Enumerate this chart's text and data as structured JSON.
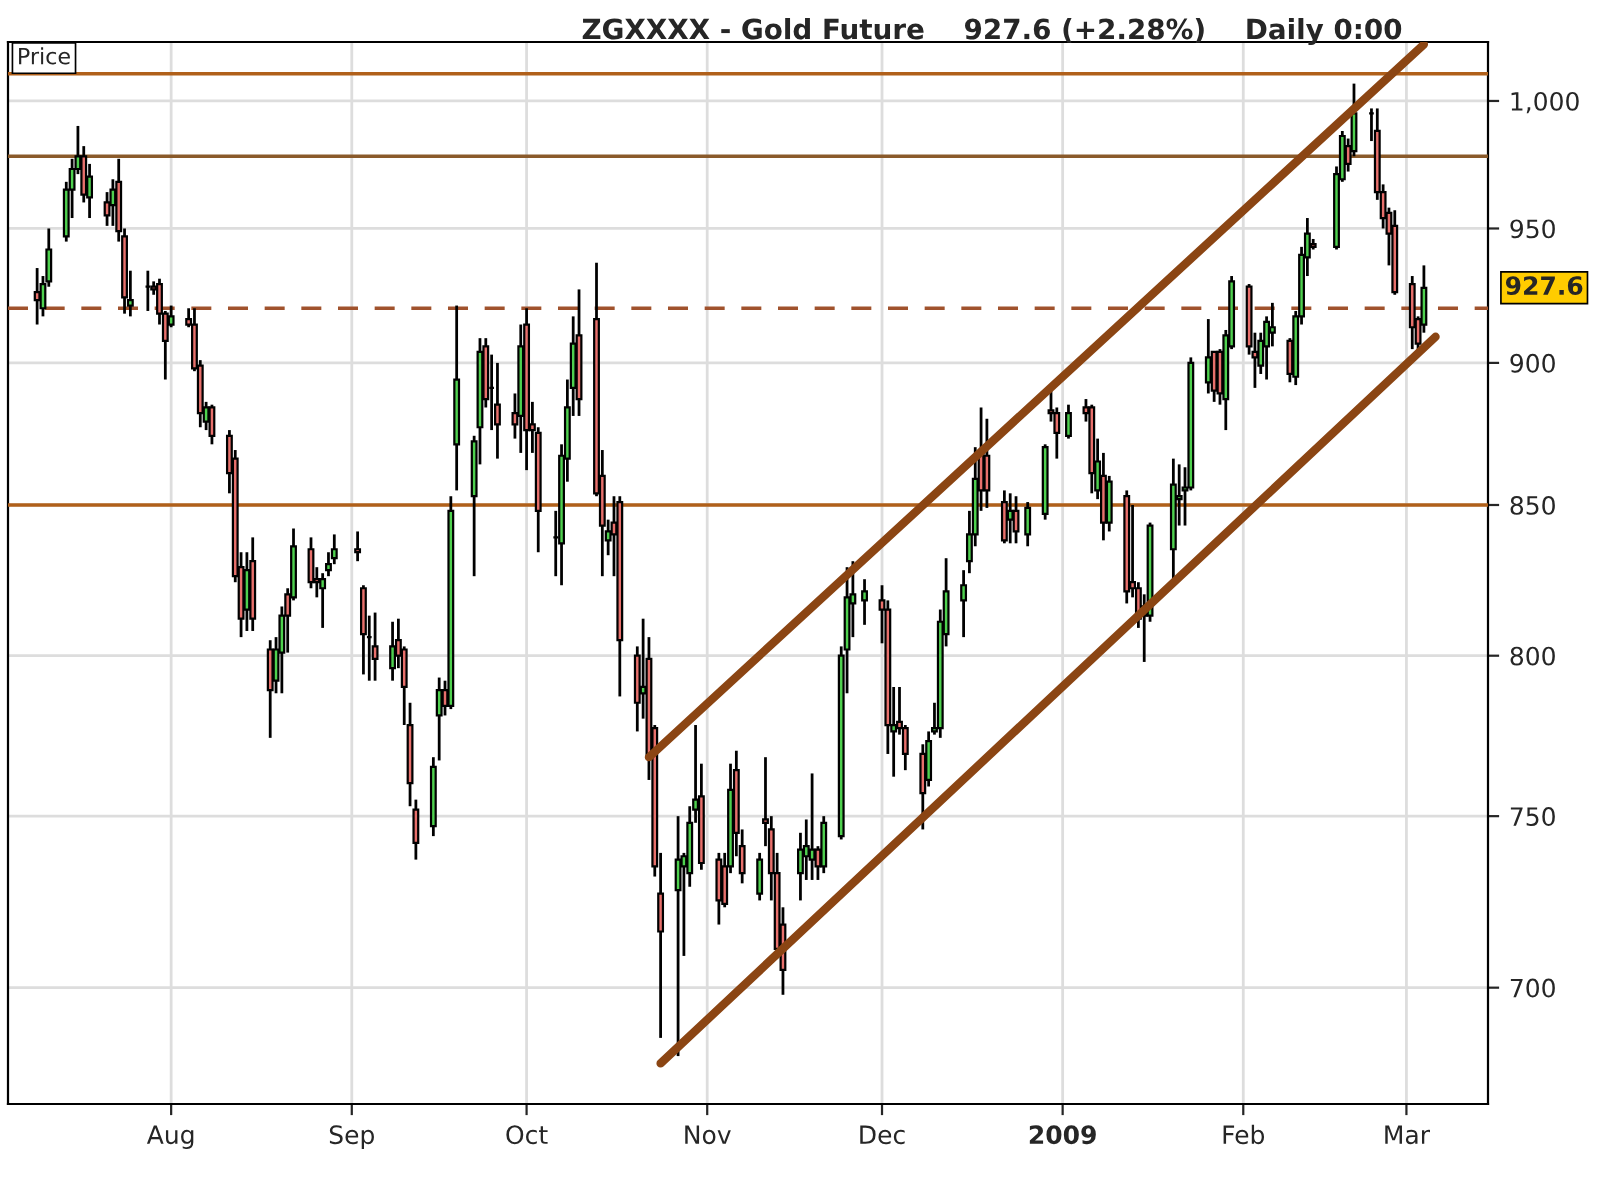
{
  "chart_data": {
    "type": "candlestick",
    "title": "ZGXXXX - Gold Future    927.6 (+2.28%)    Daily 0:00",
    "x": [
      "2008-07-09",
      "2008-07-10",
      "2008-07-11",
      "2008-07-14",
      "2008-07-15",
      "2008-07-16",
      "2008-07-17",
      "2008-07-18",
      "2008-07-21",
      "2008-07-22",
      "2008-07-23",
      "2008-07-24",
      "2008-07-25",
      "2008-07-28",
      "2008-07-29",
      "2008-07-30",
      "2008-07-31",
      "2008-08-01",
      "2008-08-04",
      "2008-08-05",
      "2008-08-06",
      "2008-08-07",
      "2008-08-08",
      "2008-08-11",
      "2008-08-12",
      "2008-08-13",
      "2008-08-14",
      "2008-08-15",
      "2008-08-18",
      "2008-08-19",
      "2008-08-20",
      "2008-08-21",
      "2008-08-22",
      "2008-08-25",
      "2008-08-26",
      "2008-08-27",
      "2008-08-28",
      "2008-08-29",
      "2008-09-02",
      "2008-09-03",
      "2008-09-04",
      "2008-09-05",
      "2008-09-08",
      "2008-09-09",
      "2008-09-10",
      "2008-09-11",
      "2008-09-12",
      "2008-09-15",
      "2008-09-16",
      "2008-09-17",
      "2008-09-18",
      "2008-09-19",
      "2008-09-22",
      "2008-09-23",
      "2008-09-24",
      "2008-09-25",
      "2008-09-26",
      "2008-09-29",
      "2008-09-30",
      "2008-10-01",
      "2008-10-02",
      "2008-10-03",
      "2008-10-06",
      "2008-10-07",
      "2008-10-08",
      "2008-10-09",
      "2008-10-10",
      "2008-10-13",
      "2008-10-14",
      "2008-10-15",
      "2008-10-16",
      "2008-10-17",
      "2008-10-20",
      "2008-10-21",
      "2008-10-22",
      "2008-10-23",
      "2008-10-24",
      "2008-10-27",
      "2008-10-28",
      "2008-10-29",
      "2008-10-30",
      "2008-10-31",
      "2008-11-03",
      "2008-11-04",
      "2008-11-05",
      "2008-11-06",
      "2008-11-07",
      "2008-11-10",
      "2008-11-11",
      "2008-11-12",
      "2008-11-13",
      "2008-11-14",
      "2008-11-17",
      "2008-11-18",
      "2008-11-19",
      "2008-11-20",
      "2008-11-21",
      "2008-11-24",
      "2008-11-25",
      "2008-11-26",
      "2008-11-28",
      "2008-12-01",
      "2008-12-02",
      "2008-12-03",
      "2008-12-04",
      "2008-12-05",
      "2008-12-08",
      "2008-12-09",
      "2008-12-10",
      "2008-12-11",
      "2008-12-12",
      "2008-12-15",
      "2008-12-16",
      "2008-12-17",
      "2008-12-18",
      "2008-12-19",
      "2008-12-22",
      "2008-12-23",
      "2008-12-24",
      "2008-12-26",
      "2008-12-29",
      "2008-12-30",
      "2008-12-31",
      "2009-01-02",
      "2009-01-05",
      "2009-01-06",
      "2009-01-07",
      "2009-01-08",
      "2009-01-09",
      "2009-01-12",
      "2009-01-13",
      "2009-01-14",
      "2009-01-15",
      "2009-01-16",
      "2009-01-20",
      "2009-01-21",
      "2009-01-22",
      "2009-01-23",
      "2009-01-26",
      "2009-01-27",
      "2009-01-28",
      "2009-01-29",
      "2009-01-30",
      "2009-02-02",
      "2009-02-03",
      "2009-02-04",
      "2009-02-05",
      "2009-02-06",
      "2009-02-09",
      "2009-02-10",
      "2009-02-11",
      "2009-02-12",
      "2009-02-13",
      "2009-02-17",
      "2009-02-18",
      "2009-02-19",
      "2009-02-20",
      "2009-02-23",
      "2009-02-24",
      "2009-02-25",
      "2009-02-26",
      "2009-02-27",
      "2009-03-02",
      "2009-03-03",
      "2009-03-04"
    ],
    "ohlc": [
      [
        926,
        935,
        914,
        923
      ],
      [
        920,
        932,
        917,
        929
      ],
      [
        930,
        950,
        928,
        942
      ],
      [
        947,
        968,
        945,
        965
      ],
      [
        965,
        977,
        954,
        973
      ],
      [
        973,
        990,
        971,
        978
      ],
      [
        978,
        982,
        960,
        963
      ],
      [
        962,
        975,
        954,
        970
      ],
      [
        960,
        964,
        951,
        955
      ],
      [
        959,
        969,
        951,
        965
      ],
      [
        968,
        977,
        945,
        949
      ],
      [
        947,
        950,
        918,
        924
      ],
      [
        921,
        934,
        917,
        923
      ],
      [
        928,
        934,
        919,
        928
      ],
      [
        928,
        930,
        925,
        927
      ],
      [
        929,
        931,
        914,
        918
      ],
      [
        918,
        919,
        894,
        908
      ],
      [
        914,
        921,
        913,
        917
      ],
      [
        916,
        920,
        913,
        914
      ],
      [
        914,
        920,
        897,
        898
      ],
      [
        899,
        901,
        877,
        882
      ],
      [
        879,
        886,
        876,
        884
      ],
      [
        884,
        885,
        871,
        874
      ],
      [
        874,
        876,
        854,
        861
      ],
      [
        866,
        869,
        824,
        826
      ],
      [
        829,
        834,
        806,
        812
      ],
      [
        815,
        834,
        808,
        828
      ],
      [
        831,
        839,
        808,
        812
      ],
      [
        802,
        805,
        774,
        789
      ],
      [
        792,
        806,
        788,
        802
      ],
      [
        801,
        816,
        788,
        813
      ],
      [
        820,
        822,
        801,
        813
      ],
      [
        819,
        842,
        818,
        836
      ],
      [
        835,
        839,
        822,
        824
      ],
      [
        825,
        829,
        819,
        824
      ],
      [
        822,
        827,
        809,
        825
      ],
      [
        828,
        834,
        826,
        830
      ],
      [
        832,
        840,
        830,
        835
      ],
      [
        835,
        841,
        831,
        834
      ],
      [
        822,
        823,
        794,
        807
      ],
      [
        806,
        813,
        792,
        806
      ],
      [
        803,
        814,
        792,
        799
      ],
      [
        796,
        811,
        792,
        803
      ],
      [
        805,
        812,
        796,
        800
      ],
      [
        802,
        803,
        778,
        790
      ],
      [
        778,
        785,
        753,
        760
      ],
      [
        752,
        755,
        737,
        742
      ],
      [
        747,
        768,
        744,
        765
      ],
      [
        781,
        793,
        767,
        789
      ],
      [
        789,
        792,
        781,
        784
      ],
      [
        784,
        853,
        783,
        848
      ],
      [
        871,
        921,
        855,
        894
      ],
      [
        853,
        874,
        826,
        872
      ],
      [
        877,
        909,
        864,
        904
      ],
      [
        906,
        909,
        884,
        887
      ],
      [
        891,
        903,
        876,
        891
      ],
      [
        885,
        900,
        866,
        878
      ],
      [
        882,
        889,
        873,
        878
      ],
      [
        881,
        914,
        868,
        906
      ],
      [
        914,
        920,
        862,
        876
      ],
      [
        878,
        886,
        868,
        876
      ],
      [
        875,
        877,
        834,
        848
      ],
      [
        839,
        848,
        826,
        839
      ],
      [
        837,
        871,
        823,
        867
      ],
      [
        866,
        894,
        858,
        884
      ],
      [
        891,
        917,
        881,
        907
      ],
      [
        910,
        927,
        881,
        887
      ],
      [
        916,
        937,
        853,
        854
      ],
      [
        860,
        869,
        826,
        843
      ],
      [
        838,
        845,
        833,
        841
      ],
      [
        844,
        853,
        826,
        840
      ],
      [
        851,
        853,
        787,
        805
      ],
      [
        800,
        803,
        776,
        785
      ],
      [
        788,
        812,
        780,
        790
      ],
      [
        799,
        806,
        761,
        768
      ],
      [
        777,
        778,
        732,
        735
      ],
      [
        727,
        739,
        686,
        716
      ],
      [
        728,
        750,
        681,
        737
      ],
      [
        735,
        739,
        709,
        738
      ],
      [
        733,
        753,
        729,
        748
      ],
      [
        752,
        778,
        748,
        755
      ],
      [
        756,
        766,
        734,
        736
      ],
      [
        737,
        739,
        718,
        725
      ],
      [
        735,
        739,
        723,
        724
      ],
      [
        735,
        766,
        733,
        758
      ],
      [
        764,
        770,
        738,
        745
      ],
      [
        741,
        746,
        730,
        733
      ],
      [
        727,
        739,
        725,
        737
      ],
      [
        749,
        768,
        741,
        748
      ],
      [
        746,
        750,
        725,
        733
      ],
      [
        733,
        739,
        709,
        711
      ],
      [
        718,
        723,
        698,
        705
      ],
      [
        733,
        745,
        725,
        740
      ],
      [
        738,
        749,
        731,
        741
      ],
      [
        737,
        763,
        731,
        740
      ],
      [
        740,
        741,
        731,
        735
      ],
      [
        735,
        750,
        733,
        748
      ],
      [
        744,
        803,
        743,
        800
      ],
      [
        802,
        829,
        788,
        819
      ],
      [
        817,
        831,
        806,
        820
      ],
      [
        818,
        825,
        810,
        821
      ],
      [
        818,
        823,
        804,
        815
      ],
      [
        815,
        818,
        769,
        778
      ],
      [
        776,
        790,
        762,
        778
      ],
      [
        779,
        790,
        775,
        777
      ],
      [
        777,
        778,
        764,
        769
      ],
      [
        769,
        772,
        746,
        757
      ],
      [
        761,
        776,
        759,
        773
      ],
      [
        776,
        785,
        775,
        777
      ],
      [
        777,
        815,
        774,
        811
      ],
      [
        807,
        832,
        803,
        821
      ],
      [
        818,
        828,
        806,
        823
      ],
      [
        831,
        848,
        827,
        840
      ],
      [
        840,
        870,
        836,
        859
      ],
      [
        868,
        884,
        848,
        855
      ],
      [
        867,
        880,
        849,
        855
      ],
      [
        851,
        855,
        837,
        838
      ],
      [
        845,
        854,
        837,
        848
      ],
      [
        848,
        853,
        837,
        841
      ],
      [
        840,
        851,
        836,
        849
      ],
      [
        847,
        871,
        845,
        870
      ],
      [
        883,
        891,
        879,
        882
      ],
      [
        882,
        884,
        866,
        875
      ],
      [
        874,
        885,
        873,
        882
      ],
      [
        884,
        887,
        879,
        882
      ],
      [
        884,
        885,
        854,
        861
      ],
      [
        855,
        873,
        852,
        865
      ],
      [
        860,
        868,
        838,
        844
      ],
      [
        844,
        860,
        841,
        858
      ],
      [
        853,
        855,
        817,
        821
      ],
      [
        824,
        850,
        819,
        822
      ],
      [
        822,
        824,
        809,
        812
      ],
      [
        813,
        820,
        798,
        816
      ],
      [
        813,
        844,
        811,
        843
      ],
      [
        835,
        866,
        824,
        857
      ],
      [
        852,
        864,
        843,
        853
      ],
      [
        855,
        863,
        843,
        856
      ],
      [
        856,
        902,
        855,
        900
      ],
      [
        893,
        916,
        889,
        902
      ],
      [
        904,
        904,
        886,
        890
      ],
      [
        904,
        905,
        885,
        889
      ],
      [
        887,
        912,
        876,
        910
      ],
      [
        906,
        932,
        905,
        930
      ],
      [
        928,
        929,
        903,
        906
      ],
      [
        904,
        911,
        891,
        902
      ],
      [
        899,
        911,
        896,
        908
      ],
      [
        906,
        917,
        894,
        915
      ],
      [
        911,
        922,
        906,
        913
      ],
      [
        908,
        909,
        893,
        896
      ],
      [
        895,
        919,
        892,
        917
      ],
      [
        917,
        943,
        914,
        940
      ],
      [
        939,
        954,
        932,
        948
      ],
      [
        944,
        946,
        942,
        943
      ],
      [
        943,
        974,
        942,
        971
      ],
      [
        969,
        988,
        968,
        986
      ],
      [
        982,
        985,
        972,
        975
      ],
      [
        980,
        1007,
        978,
        995
      ],
      [
        995,
        997,
        984,
        995
      ],
      [
        988,
        997,
        961,
        964
      ],
      [
        964,
        967,
        950,
        954
      ],
      [
        956,
        958,
        936,
        948
      ],
      [
        951,
        957,
        925,
        926
      ],
      [
        929,
        932,
        905,
        913
      ],
      [
        916,
        917,
        904,
        907
      ],
      [
        914,
        936,
        911,
        927.6
      ]
    ],
    "series": [
      {
        "type": "line",
        "color": "#8b4513",
        "x": [
          "2008-10-22",
          "2009-03-04"
        ],
        "values": [
          768,
          1023
        ]
      },
      {
        "type": "line",
        "color": "#8b4513",
        "x": [
          "2008-10-24",
          "2009-03-06"
        ],
        "values": [
          679,
          909.5
        ]
      }
    ],
    "ref_lines": [
      {
        "axis": "y",
        "value": 1011,
        "color": "#b0601a",
        "line_style": "solid"
      },
      {
        "axis": "y",
        "value": 978,
        "color": "#8a5a2a",
        "line_style": "solid"
      },
      {
        "axis": "y",
        "value": 920,
        "color": "#a0522d",
        "line_style": "dashed"
      },
      {
        "axis": "y",
        "value": 850,
        "color": "#b0601a",
        "line_style": "solid"
      }
    ],
    "annotations": [
      "Price",
      "927.6"
    ],
    "log": true,
    "xlim": [
      "2008-07-04",
      "2009-03-15"
    ],
    "xticks": [
      {
        "value": "2008-08-01",
        "label": "Aug"
      },
      {
        "value": "2008-09-01",
        "label": "Sep"
      },
      {
        "value": "2008-10-01",
        "label": "Oct"
      },
      {
        "value": "2008-11-01",
        "label": "Nov"
      },
      {
        "value": "2008-12-01",
        "label": "Dec"
      },
      {
        "value": "2009-01-01",
        "label": "2009"
      },
      {
        "value": "2009-02-01",
        "label": "Feb"
      },
      {
        "value": "2009-03-01",
        "label": "Mar"
      }
    ],
    "ylim": [
      668,
      1024
    ],
    "yticks": [
      700,
      750,
      800,
      850,
      900,
      950,
      {
        "value": 1000,
        "label": "1,000"
      }
    ],
    "grid": true,
    "legend": false
  }
}
